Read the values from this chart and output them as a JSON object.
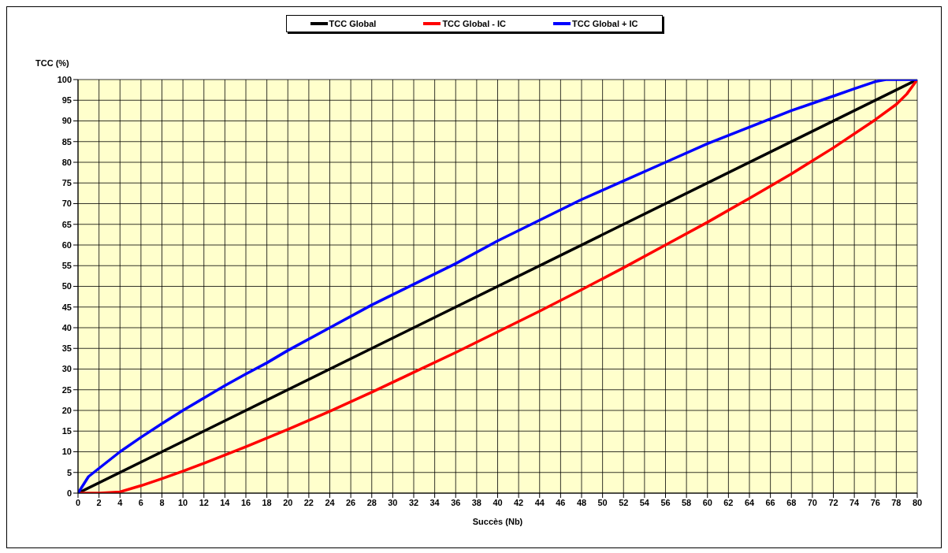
{
  "chart_data": {
    "type": "line",
    "xlabel": "Succès (Nb)",
    "ylabel": "TCC (%)",
    "xlim": [
      0,
      80
    ],
    "xticks": [
      0,
      2,
      4,
      6,
      8,
      10,
      12,
      14,
      16,
      18,
      20,
      22,
      24,
      26,
      28,
      30,
      32,
      34,
      36,
      38,
      40,
      42,
      44,
      46,
      48,
      50,
      52,
      54,
      56,
      58,
      60,
      62,
      64,
      66,
      68,
      70,
      72,
      74,
      76,
      78,
      80
    ],
    "ylim": [
      0,
      100
    ],
    "yticks": [
      0,
      5,
      10,
      15,
      20,
      25,
      30,
      35,
      40,
      45,
      50,
      55,
      60,
      65,
      70,
      75,
      80,
      85,
      90,
      95,
      100
    ],
    "grid": true,
    "legend": "top",
    "marker": "none",
    "line_style": "solid",
    "series": [
      {
        "name": "TCC Global",
        "color": "#000000",
        "x": [
          0,
          80
        ],
        "values": [
          0,
          100
        ]
      },
      {
        "name": "TCC Global - IC",
        "color": "#ff0000",
        "x": [
          0,
          2,
          4,
          6,
          8,
          10,
          12,
          14,
          16,
          18,
          20,
          24,
          28,
          32,
          36,
          40,
          44,
          48,
          52,
          56,
          60,
          64,
          68,
          72,
          76,
          78,
          79,
          80
        ],
        "values": [
          0,
          0,
          0.3,
          1.8,
          3.5,
          5.3,
          7.2,
          9.2,
          11.2,
          13.3,
          15.4,
          19.8,
          24.4,
          29.2,
          34,
          39,
          44,
          49.2,
          54.5,
          60,
          65.5,
          71.3,
          77.2,
          83.5,
          90.3,
          94,
          96.5,
          100
        ]
      },
      {
        "name": "TCC Global + IC",
        "color": "#0000ff",
        "x": [
          0,
          1,
          2,
          4,
          6,
          8,
          10,
          12,
          14,
          16,
          18,
          20,
          24,
          28,
          32,
          36,
          40,
          44,
          48,
          52,
          56,
          60,
          64,
          68,
          72,
          74,
          76,
          77,
          80
        ],
        "values": [
          0,
          4,
          6,
          10,
          13.5,
          16.8,
          20,
          23,
          26,
          28.8,
          31.5,
          34.5,
          40,
          45.5,
          50.5,
          55.5,
          61,
          66,
          71,
          75.5,
          80,
          84.5,
          88.5,
          92.5,
          96,
          97.8,
          99.5,
          100,
          100
        ]
      }
    ]
  }
}
